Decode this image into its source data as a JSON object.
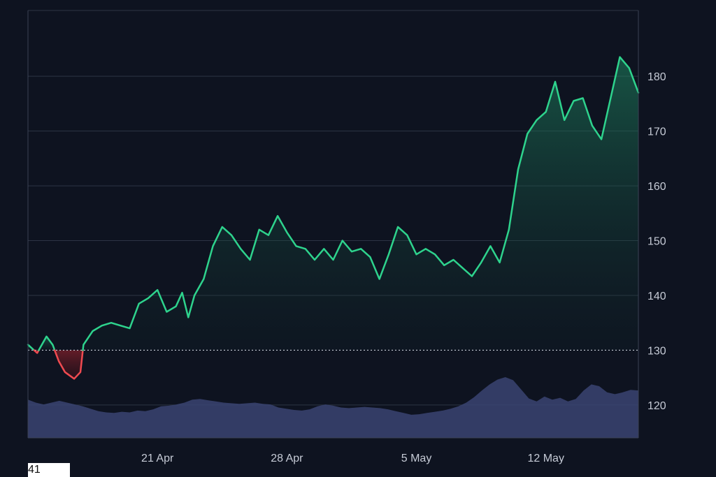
{
  "chart_data": {
    "type": "area",
    "title": "",
    "xlabel": "",
    "ylabel": "",
    "baseline": 130,
    "ylim": [
      114,
      192
    ],
    "y_ticks": [
      120,
      130,
      140,
      150,
      160,
      170,
      180
    ],
    "x_range": [
      "2024-04-14",
      "2024-05-17"
    ],
    "x_ticks": [
      {
        "date": "2024-04-21",
        "label": "21 Apr"
      },
      {
        "date": "2024-04-28",
        "label": "28 Apr"
      },
      {
        "date": "2024-05-05",
        "label": "5 May"
      },
      {
        "date": "2024-05-12",
        "label": "12 May"
      }
    ],
    "colors": {
      "up_line": "#2ed38d",
      "down_line": "#ef4a50",
      "volume": "#3a4472",
      "grid": "#2d3444",
      "baseline": "#c9ced8",
      "background": "#0e1320"
    },
    "price_series": {
      "name": "",
      "points": [
        [
          "2024-04-14",
          131
        ],
        [
          "2024-04-14 12:00",
          129.5
        ],
        [
          "2024-04-15",
          132.5
        ],
        [
          "2024-04-15 08:00",
          131
        ],
        [
          "2024-04-15 16:00",
          128
        ],
        [
          "2024-04-16",
          126
        ],
        [
          "2024-04-16 12:00",
          124.8
        ],
        [
          "2024-04-16 20:00",
          126
        ],
        [
          "2024-04-17",
          131
        ],
        [
          "2024-04-17 12:00",
          133.5
        ],
        [
          "2024-04-18",
          134.5
        ],
        [
          "2024-04-18 12:00",
          135
        ],
        [
          "2024-04-19",
          134.5
        ],
        [
          "2024-04-19 12:00",
          134
        ],
        [
          "2024-04-20",
          138.5
        ],
        [
          "2024-04-20 12:00",
          139.5
        ],
        [
          "2024-04-21",
          141
        ],
        [
          "2024-04-21 12:00",
          137
        ],
        [
          "2024-04-22",
          138
        ],
        [
          "2024-04-22 08:00",
          140.5
        ],
        [
          "2024-04-22 16:00",
          136
        ],
        [
          "2024-04-23",
          140
        ],
        [
          "2024-04-23 12:00",
          143
        ],
        [
          "2024-04-24",
          149
        ],
        [
          "2024-04-24 12:00",
          152.5
        ],
        [
          "2024-04-25",
          151
        ],
        [
          "2024-04-25 12:00",
          148.5
        ],
        [
          "2024-04-26",
          146.5
        ],
        [
          "2024-04-26 12:00",
          152
        ],
        [
          "2024-04-27",
          151
        ],
        [
          "2024-04-27 12:00",
          154.5
        ],
        [
          "2024-04-28",
          151.5
        ],
        [
          "2024-04-28 12:00",
          149
        ],
        [
          "2024-04-29",
          148.5
        ],
        [
          "2024-04-29 12:00",
          146.5
        ],
        [
          "2024-04-30",
          148.5
        ],
        [
          "2024-04-30 12:00",
          146.5
        ],
        [
          "2024-05-01",
          150
        ],
        [
          "2024-05-01 12:00",
          148
        ],
        [
          "2024-05-02",
          148.5
        ],
        [
          "2024-05-02 12:00",
          147
        ],
        [
          "2024-05-03",
          143
        ],
        [
          "2024-05-03 12:00",
          147.5
        ],
        [
          "2024-05-04",
          152.5
        ],
        [
          "2024-05-04 12:00",
          151
        ],
        [
          "2024-05-05",
          147.5
        ],
        [
          "2024-05-05 12:00",
          148.5
        ],
        [
          "2024-05-06",
          147.5
        ],
        [
          "2024-05-06 12:00",
          145.5
        ],
        [
          "2024-05-07",
          146.5
        ],
        [
          "2024-05-07 12:00",
          145
        ],
        [
          "2024-05-08",
          143.5
        ],
        [
          "2024-05-08 12:00",
          146
        ],
        [
          "2024-05-09",
          149
        ],
        [
          "2024-05-09 12:00",
          146
        ],
        [
          "2024-05-10",
          152
        ],
        [
          "2024-05-10 12:00",
          163
        ],
        [
          "2024-05-11",
          169.5
        ],
        [
          "2024-05-11 12:00",
          172
        ],
        [
          "2024-05-12",
          173.5
        ],
        [
          "2024-05-12 12:00",
          179
        ],
        [
          "2024-05-13",
          172
        ],
        [
          "2024-05-13 12:00",
          175.5
        ],
        [
          "2024-05-14",
          176
        ],
        [
          "2024-05-14 12:00",
          171
        ],
        [
          "2024-05-15",
          168.5
        ],
        [
          "2024-05-15 12:00",
          176
        ],
        [
          "2024-05-16",
          183.5
        ],
        [
          "2024-05-16 12:00",
          181.5
        ],
        [
          "2024-05-17",
          177
        ]
      ]
    },
    "volume_series": {
      "name": "",
      "relative_values": [
        0.63,
        0.58,
        0.55,
        0.58,
        0.61,
        0.58,
        0.55,
        0.52,
        0.48,
        0.44,
        0.42,
        0.41,
        0.43,
        0.42,
        0.45,
        0.44,
        0.47,
        0.52,
        0.53,
        0.55,
        0.58,
        0.63,
        0.64,
        0.62,
        0.6,
        0.58,
        0.57,
        0.56,
        0.57,
        0.58,
        0.56,
        0.55,
        0.5,
        0.48,
        0.46,
        0.45,
        0.47,
        0.52,
        0.55,
        0.53,
        0.5,
        0.49,
        0.5,
        0.51,
        0.5,
        0.49,
        0.47,
        0.44,
        0.41,
        0.38,
        0.39,
        0.41,
        0.43,
        0.45,
        0.48,
        0.52,
        0.58,
        0.67,
        0.78,
        0.88,
        0.96,
        1.0,
        0.95,
        0.8,
        0.65,
        0.6,
        0.68,
        0.63,
        0.66,
        0.6,
        0.64,
        0.78,
        0.88,
        0.85,
        0.75,
        0.72,
        0.75,
        0.79,
        0.78
      ]
    }
  },
  "footer": {
    "corner_label": "41"
  }
}
